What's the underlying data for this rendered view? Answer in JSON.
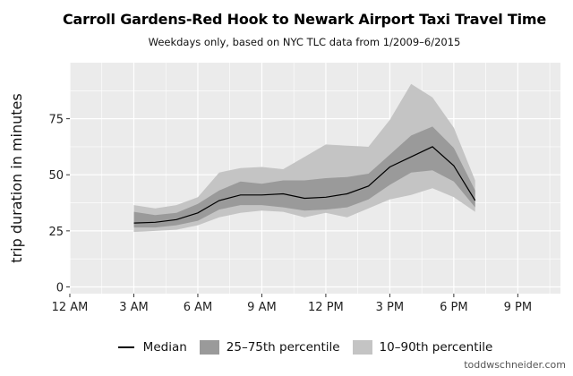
{
  "title": "Carroll Gardens-Red Hook to Newark Airport Taxi Travel Time",
  "subtitle": "Weekdays only, based on NYC TLC data from 1/2009–6/2015",
  "credit": "toddwschneider.com",
  "legend": {
    "median": "Median",
    "iqr": "25–75th percentile",
    "p10_90": "10–90th percentile"
  },
  "colors": {
    "panel_bg": "#ebebeb",
    "band_10_90": "#c4c4c4",
    "band_25_75": "#9a9a9a",
    "median_line": "#000000",
    "grid": "#ffffff"
  },
  "chart_data": {
    "type": "area",
    "xlabel": "",
    "ylabel": "trip duration in minutes",
    "xlim": [
      0,
      23
    ],
    "ylim": [
      -3,
      100
    ],
    "x_ticks": [
      0,
      3,
      6,
      9,
      12,
      15,
      18,
      21
    ],
    "x_tick_labels": [
      "12 AM",
      "3 AM",
      "6 AM",
      "9 AM",
      "12 PM",
      "3 PM",
      "6 PM",
      "9 PM"
    ],
    "y_ticks": [
      0,
      25,
      50,
      75
    ],
    "y_tick_labels": [
      "0",
      "25",
      "50",
      "75"
    ],
    "legend_position": "bottom",
    "x": [
      3,
      4,
      5,
      6,
      7,
      8,
      9,
      10,
      11,
      12,
      13,
      14,
      15,
      16,
      17,
      18,
      19
    ],
    "series": [
      {
        "name": "Median",
        "values": [
          28.5,
          28.8,
          30,
          33,
          38.5,
          41,
          41,
          41.5,
          39.5,
          40,
          41.5,
          45,
          53.5,
          58,
          62.5,
          54,
          38.5
        ]
      },
      {
        "name": "25–75th percentile",
        "low": [
          26.5,
          26.5,
          27.5,
          29.5,
          34.5,
          36.5,
          36.5,
          35.5,
          34,
          34.5,
          35.5,
          39,
          45.5,
          51,
          52,
          47,
          35.5
        ],
        "high": [
          33.5,
          32,
          33,
          37,
          43,
          47,
          46,
          47.5,
          47.5,
          48.5,
          49,
          50.5,
          59,
          67.5,
          71.5,
          62,
          43
        ]
      },
      {
        "name": "10–90th percentile",
        "low": [
          24.5,
          25,
          25.5,
          27.5,
          31,
          33,
          34,
          33.5,
          31,
          33,
          31,
          35,
          39,
          41,
          44,
          40,
          33.5
        ],
        "high": [
          36.5,
          35,
          36.5,
          40,
          51,
          53,
          53.5,
          52.5,
          58,
          63.5,
          63,
          62.5,
          74.5,
          90.5,
          84.5,
          71,
          47.5
        ]
      }
    ]
  }
}
